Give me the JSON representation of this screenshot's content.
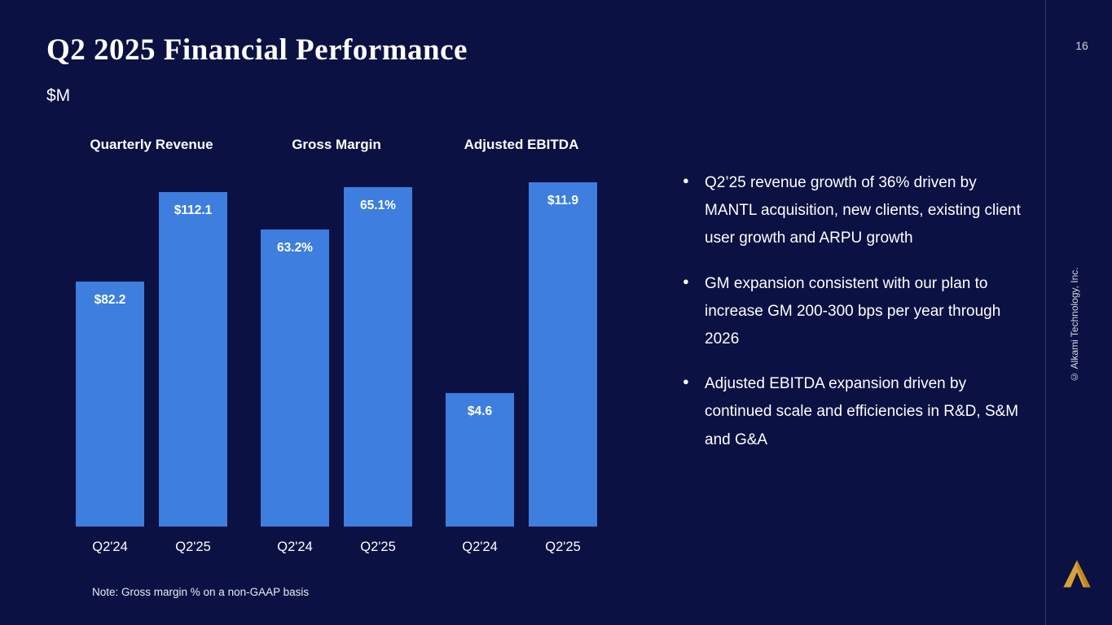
{
  "page": {
    "number": "16",
    "copyright": "© Alkami Technology, Inc."
  },
  "header": {
    "title": "Q2 2025 Financial Performance",
    "units": "$M"
  },
  "note": "Note: Gross margin % on a non-GAAP basis",
  "bullets": [
    "Q2’25 revenue growth of 36% driven by MANTL acquisition, new clients, existing client user growth and ARPU growth",
    "GM expansion consistent with our plan to increase GM 200-300 bps per year through 2026",
    "Adjusted EBITDA expansion driven by continued scale and efficiencies in R&D, S&M and G&A"
  ],
  "colors": {
    "background": "#0b1142",
    "bar": "#3d7edf",
    "accent_gold": "#d9a13b"
  },
  "chart_data": [
    {
      "type": "bar",
      "title": "Quarterly Revenue",
      "categories": [
        "Q2'24",
        "Q2'25"
      ],
      "values": [
        82.2,
        112.1
      ],
      "labels": [
        "$82.2",
        "$112.1"
      ],
      "ylabel": "$M",
      "ylim": [
        0,
        115.5
      ],
      "grid": false,
      "legend": "none"
    },
    {
      "type": "bar",
      "title": "Gross Margin",
      "categories": [
        "Q2'24",
        "Q2'25"
      ],
      "values": [
        63.2,
        65.1
      ],
      "labels": [
        "63.2%",
        "65.1%"
      ],
      "ylabel": "%",
      "ylim": [
        50,
        65.3
      ],
      "grid": false,
      "legend": "none"
    },
    {
      "type": "bar",
      "title": "Adjusted EBITDA",
      "categories": [
        "Q2'24",
        "Q2'25"
      ],
      "values": [
        4.6,
        11.9
      ],
      "labels": [
        "$4.6",
        "$11.9"
      ],
      "ylabel": "$M",
      "ylim": [
        0,
        11.9
      ],
      "grid": false,
      "legend": "none"
    }
  ]
}
